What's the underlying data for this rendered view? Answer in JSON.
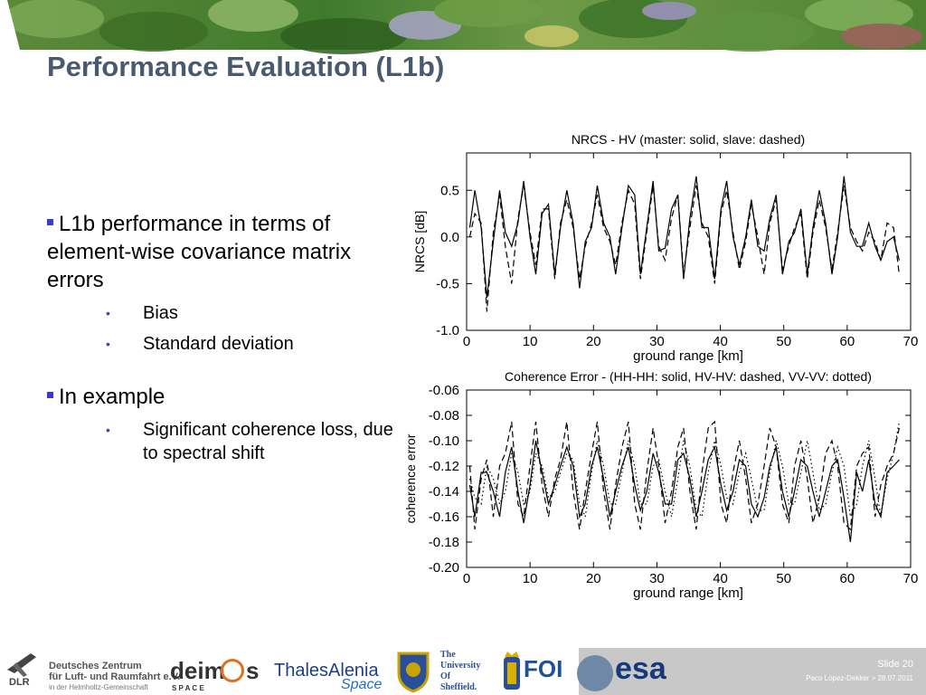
{
  "slide": {
    "title": "Performance Evaluation (L1b)",
    "bullets": [
      {
        "text": "L1b performance in terms of element-wise covariance matrix errors",
        "sub": [
          "Bias",
          "Standard deviation"
        ]
      },
      {
        "text": "In example",
        "sub": [
          "Significant coherence loss, due to spectral shift"
        ]
      }
    ]
  },
  "footer": {
    "slide_number": "Slide 20",
    "author_date": "Paco López-Dekker > 28.07.2011",
    "logos": {
      "dlr": {
        "mark": "DLR",
        "line1": "Deutsches Zentrum",
        "line2": "für Luft- und Raumfahrt e.V.",
        "line3": "in der Helmholtz-Gemeinschaft"
      },
      "deimos": {
        "name1": "deim",
        "name2": "s",
        "sub": "S P A C E"
      },
      "thales": {
        "name": "ThalesAlenia",
        "sub": "Space"
      },
      "sheffield": {
        "line1": "The",
        "line2": "University",
        "line3": "Of",
        "line4": "Sheffield."
      },
      "foi": {
        "name": "FOI"
      },
      "esa": {
        "name": "esa"
      }
    }
  },
  "colors": {
    "title": "#4a5a6e",
    "bullet": "#3a3ad0",
    "plot_line": "#000000"
  },
  "chart_data": [
    {
      "type": "line",
      "title": "NRCS - HV (master: solid, slave: dashed)",
      "xlabel": "ground range [km]",
      "ylabel": "NRCS [dB]",
      "xlim": [
        0,
        70
      ],
      "ylim": [
        -1.0,
        0.9
      ],
      "xticks": [
        0,
        10,
        20,
        30,
        40,
        50,
        60,
        70
      ],
      "yticks": [
        -1.0,
        -0.5,
        0.0,
        0.5
      ],
      "grid": false,
      "x": [
        0.5,
        1.3,
        2.3,
        3.2,
        4.2,
        5.2,
        6.1,
        7.1,
        8.1,
        9.0,
        10.0,
        10.9,
        11.9,
        12.9,
        13.9,
        14.8,
        15.8,
        16.8,
        17.8,
        18.7,
        19.7,
        20.6,
        21.6,
        22.6,
        23.5,
        24.5,
        25.5,
        26.5,
        27.4,
        28.4,
        29.4,
        30.3,
        31.3,
        32.3,
        33.3,
        34.2,
        35.2,
        36.2,
        37.1,
        38.1,
        39.1,
        40.1,
        41.0,
        42.0,
        43.0,
        44.0,
        44.9,
        45.9,
        46.9,
        47.8,
        48.8,
        49.8,
        50.8,
        51.7,
        52.7,
        53.7,
        54.6,
        55.6,
        56.6,
        57.6,
        58.5,
        59.5,
        60.5,
        61.5,
        62.4,
        63.4,
        64.4,
        65.3,
        66.3,
        67.3,
        68.2
      ],
      "series": [
        {
          "name": "master",
          "style": "solid",
          "values": [
            0.1,
            0.5,
            0.1,
            -0.65,
            -0.05,
            0.5,
            0.05,
            -0.1,
            0.15,
            0.6,
            0.0,
            -0.4,
            0.25,
            0.35,
            -0.4,
            0.1,
            0.5,
            0.15,
            -0.55,
            -0.05,
            0.1,
            0.55,
            0.15,
            0.0,
            -0.4,
            0.1,
            0.55,
            0.45,
            -0.4,
            0.1,
            0.6,
            -0.15,
            -0.12,
            0.3,
            0.45,
            -0.45,
            0.2,
            0.65,
            0.1,
            0.1,
            -0.45,
            0.3,
            0.6,
            0.0,
            -0.3,
            0.0,
            0.4,
            -0.1,
            -0.15,
            0.2,
            0.45,
            -0.4,
            -0.05,
            0.05,
            0.3,
            -0.4,
            0.1,
            0.5,
            0.15,
            -0.4,
            0.0,
            0.65,
            0.05,
            -0.1,
            -0.1,
            0.15,
            -0.1,
            -0.25,
            -0.05,
            0.0,
            -0.25
          ]
        },
        {
          "name": "slave",
          "style": "dashed",
          "values": [
            0.0,
            0.25,
            0.15,
            -0.8,
            0.05,
            0.45,
            -0.1,
            -0.5,
            0.2,
            0.55,
            0.05,
            -0.3,
            0.3,
            0.3,
            -0.45,
            0.15,
            0.4,
            0.1,
            -0.45,
            -0.1,
            0.15,
            0.45,
            0.1,
            -0.05,
            -0.3,
            0.15,
            0.5,
            0.35,
            -0.45,
            0.05,
            0.55,
            -0.1,
            -0.25,
            0.2,
            0.45,
            -0.4,
            0.1,
            0.55,
            0.15,
            0.0,
            -0.5,
            0.25,
            0.5,
            0.05,
            -0.35,
            -0.05,
            0.35,
            0.0,
            -0.4,
            0.15,
            0.4,
            -0.35,
            -0.1,
            0.1,
            0.25,
            -0.45,
            0.05,
            0.4,
            0.1,
            -0.35,
            0.05,
            0.55,
            0.1,
            -0.05,
            -0.15,
            0.05,
            -0.05,
            -0.25,
            0.15,
            0.1,
            -0.4
          ]
        }
      ]
    },
    {
      "type": "line",
      "title": "Coherence Error - (HH-HH: solid, HV-HV: dashed, VV-VV: dotted)",
      "xlabel": "ground range [km]",
      "ylabel": "coherence error",
      "xlim": [
        0,
        70
      ],
      "ylim": [
        -0.2,
        -0.06
      ],
      "xticks": [
        0,
        10,
        20,
        30,
        40,
        50,
        60,
        70
      ],
      "yticks": [
        -0.2,
        -0.18,
        -0.16,
        -0.14,
        -0.12,
        -0.1,
        -0.08,
        -0.06
      ],
      "grid": false,
      "x": [
        0.5,
        1.3,
        2.3,
        3.2,
        4.2,
        5.2,
        6.1,
        7.1,
        8.1,
        9.0,
        10.0,
        10.9,
        11.9,
        12.9,
        13.9,
        14.8,
        15.8,
        16.8,
        17.8,
        18.7,
        19.7,
        20.6,
        21.6,
        22.6,
        23.5,
        24.5,
        25.5,
        26.5,
        27.4,
        28.4,
        29.4,
        30.3,
        31.3,
        32.3,
        33.3,
        34.2,
        35.2,
        36.2,
        37.1,
        38.1,
        39.1,
        40.1,
        41.0,
        42.0,
        43.0,
        44.0,
        44.9,
        45.9,
        46.9,
        47.8,
        48.8,
        49.8,
        50.8,
        51.7,
        52.7,
        53.7,
        54.6,
        55.6,
        56.6,
        57.6,
        58.5,
        59.5,
        60.5,
        61.5,
        62.4,
        63.4,
        64.4,
        65.3,
        66.3,
        67.3,
        68.2
      ],
      "series": [
        {
          "name": "HH-HH",
          "style": "solid",
          "values": [
            -0.135,
            -0.16,
            -0.125,
            -0.125,
            -0.14,
            -0.16,
            -0.125,
            -0.105,
            -0.14,
            -0.165,
            -0.135,
            -0.1,
            -0.125,
            -0.15,
            -0.135,
            -0.12,
            -0.105,
            -0.12,
            -0.16,
            -0.15,
            -0.12,
            -0.105,
            -0.13,
            -0.16,
            -0.14,
            -0.12,
            -0.105,
            -0.135,
            -0.155,
            -0.14,
            -0.11,
            -0.125,
            -0.15,
            -0.15,
            -0.115,
            -0.11,
            -0.13,
            -0.16,
            -0.14,
            -0.115,
            -0.105,
            -0.135,
            -0.155,
            -0.14,
            -0.115,
            -0.12,
            -0.15,
            -0.16,
            -0.145,
            -0.12,
            -0.105,
            -0.14,
            -0.16,
            -0.14,
            -0.115,
            -0.12,
            -0.14,
            -0.16,
            -0.14,
            -0.12,
            -0.115,
            -0.145,
            -0.18,
            -0.125,
            -0.14,
            -0.115,
            -0.15,
            -0.16,
            -0.125,
            -0.12,
            -0.115
          ]
        },
        {
          "name": "HV-HV",
          "style": "dashed",
          "values": [
            -0.12,
            -0.17,
            -0.13,
            -0.115,
            -0.16,
            -0.12,
            -0.11,
            -0.085,
            -0.15,
            -0.16,
            -0.12,
            -0.085,
            -0.135,
            -0.16,
            -0.13,
            -0.115,
            -0.085,
            -0.14,
            -0.17,
            -0.14,
            -0.11,
            -0.085,
            -0.14,
            -0.17,
            -0.135,
            -0.105,
            -0.085,
            -0.15,
            -0.17,
            -0.125,
            -0.09,
            -0.12,
            -0.165,
            -0.14,
            -0.105,
            -0.09,
            -0.14,
            -0.17,
            -0.125,
            -0.09,
            -0.085,
            -0.15,
            -0.165,
            -0.125,
            -0.1,
            -0.13,
            -0.165,
            -0.15,
            -0.12,
            -0.09,
            -0.105,
            -0.15,
            -0.165,
            -0.12,
            -0.1,
            -0.13,
            -0.165,
            -0.145,
            -0.11,
            -0.1,
            -0.12,
            -0.165,
            -0.17,
            -0.12,
            -0.11,
            -0.105,
            -0.16,
            -0.135,
            -0.12,
            -0.11,
            -0.09
          ]
        },
        {
          "name": "VV-VV",
          "style": "dotted",
          "values": [
            -0.13,
            -0.145,
            -0.15,
            -0.12,
            -0.13,
            -0.15,
            -0.14,
            -0.11,
            -0.125,
            -0.15,
            -0.14,
            -0.11,
            -0.12,
            -0.145,
            -0.14,
            -0.125,
            -0.11,
            -0.115,
            -0.15,
            -0.16,
            -0.125,
            -0.1,
            -0.12,
            -0.15,
            -0.15,
            -0.125,
            -0.1,
            -0.12,
            -0.15,
            -0.15,
            -0.12,
            -0.115,
            -0.14,
            -0.16,
            -0.13,
            -0.1,
            -0.12,
            -0.155,
            -0.16,
            -0.125,
            -0.1,
            -0.12,
            -0.145,
            -0.15,
            -0.125,
            -0.11,
            -0.13,
            -0.155,
            -0.155,
            -0.125,
            -0.1,
            -0.12,
            -0.15,
            -0.15,
            -0.125,
            -0.1,
            -0.125,
            -0.155,
            -0.15,
            -0.125,
            -0.105,
            -0.12,
            -0.16,
            -0.15,
            -0.12,
            -0.1,
            -0.13,
            -0.16,
            -0.13,
            -0.11,
            -0.085
          ]
        }
      ]
    }
  ]
}
